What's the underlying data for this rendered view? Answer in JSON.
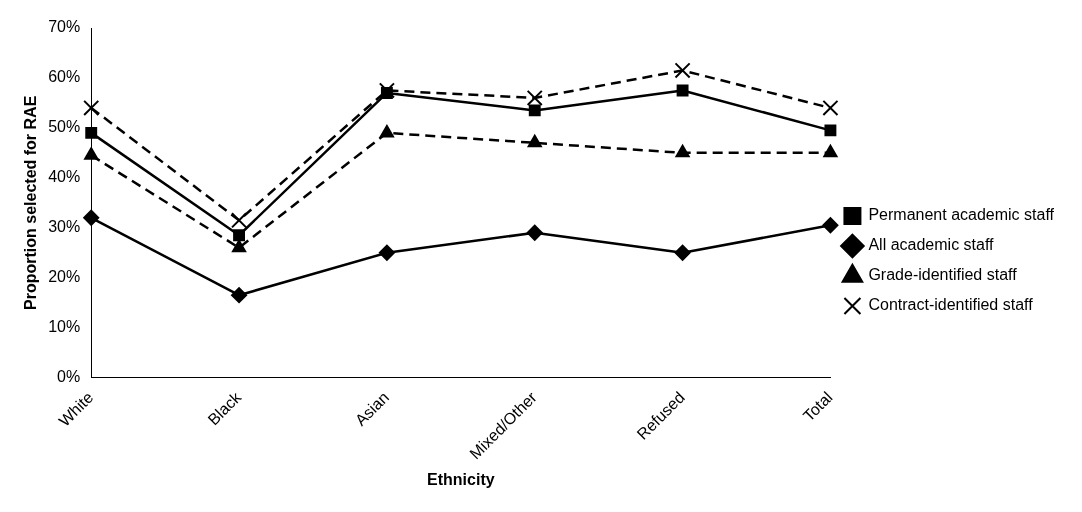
{
  "chart_data": {
    "type": "line",
    "xlabel": "Ethnicity",
    "ylabel": "Proportion selected for RAE",
    "categories": [
      "White",
      "Black",
      "Asian",
      "Mixed/Other",
      "Refused",
      "Total"
    ],
    "ylim": [
      0,
      70
    ],
    "yticks": [
      {
        "value": 0,
        "label": "0%"
      },
      {
        "value": 10,
        "label": "10%"
      },
      {
        "value": 20,
        "label": "20%"
      },
      {
        "value": 30,
        "label": "30%"
      },
      {
        "value": 40,
        "label": "40%"
      },
      {
        "value": 50,
        "label": "50%"
      },
      {
        "value": 60,
        "label": "60%"
      },
      {
        "value": 70,
        "label": "70%"
      }
    ],
    "grid": false,
    "legend": "right",
    "series": [
      {
        "name": "Permanent academic staff",
        "color": "#000000",
        "marker": "square",
        "line_style": "solid",
        "values": [
          49,
          28.5,
          57,
          53.5,
          57.5,
          49.5
        ]
      },
      {
        "name": "All academic staff",
        "color": "#000000",
        "marker": "diamond",
        "line_style": "solid",
        "values": [
          32,
          16.5,
          25,
          29,
          25,
          30.5
        ]
      },
      {
        "name": "Grade-identified staff",
        "color": "#000000",
        "marker": "triangle",
        "line_style": "dashed",
        "values": [
          44.5,
          26,
          49,
          47,
          45,
          45
        ]
      },
      {
        "name": "Contract-identified staff",
        "color": "#000000",
        "marker": "cross",
        "line_style": "dashed",
        "values": [
          54,
          31.5,
          57.5,
          56,
          61.5,
          54
        ]
      }
    ]
  }
}
